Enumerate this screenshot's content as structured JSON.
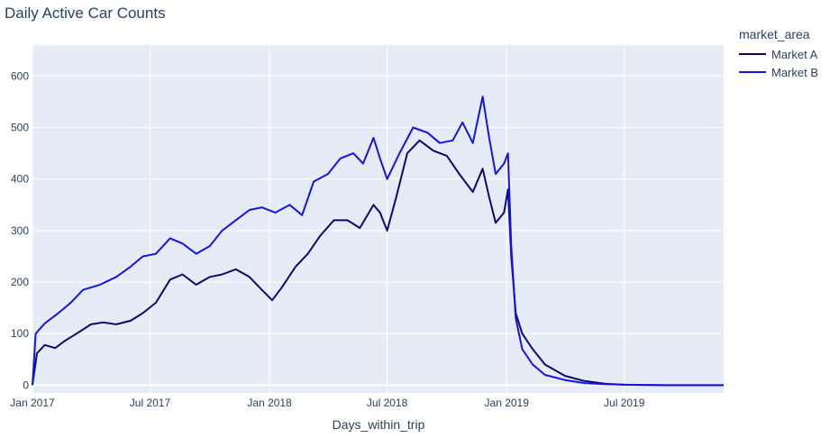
{
  "chart_data": {
    "type": "line",
    "title": "Daily Active Car Counts",
    "xlabel": "Days_within_trip",
    "ylabel": "",
    "x_range": [
      "2017-01-01",
      "2019-12-01"
    ],
    "ylim": [
      -15,
      660
    ],
    "x_ticks": [
      {
        "date": "2017-01-01",
        "label": "Jan 2017"
      },
      {
        "date": "2017-07-01",
        "label": "Jul 2017"
      },
      {
        "date": "2018-01-01",
        "label": "Jan 2018"
      },
      {
        "date": "2018-07-01",
        "label": "Jul 2018"
      },
      {
        "date": "2019-01-01",
        "label": "Jan 2019"
      },
      {
        "date": "2019-07-01",
        "label": "Jul 2019"
      }
    ],
    "y_ticks": [
      0,
      100,
      200,
      300,
      400,
      500,
      600
    ],
    "grid": true,
    "legend": {
      "title": "market_area",
      "position": "top-right"
    },
    "series": [
      {
        "name": "Market A",
        "color": "#0a0a6e",
        "points": [
          [
            "2017-01-01",
            0
          ],
          [
            "2017-01-08",
            62
          ],
          [
            "2017-01-20",
            78
          ],
          [
            "2017-02-05",
            72
          ],
          [
            "2017-02-20",
            86
          ],
          [
            "2017-03-10",
            100
          ],
          [
            "2017-04-01",
            118
          ],
          [
            "2017-04-20",
            122
          ],
          [
            "2017-05-10",
            118
          ],
          [
            "2017-06-01",
            125
          ],
          [
            "2017-06-20",
            140
          ],
          [
            "2017-07-10",
            160
          ],
          [
            "2017-08-01",
            205
          ],
          [
            "2017-08-20",
            215
          ],
          [
            "2017-09-10",
            195
          ],
          [
            "2017-10-01",
            210
          ],
          [
            "2017-10-20",
            215
          ],
          [
            "2017-11-10",
            225
          ],
          [
            "2017-12-01",
            210
          ],
          [
            "2017-12-20",
            185
          ],
          [
            "2018-01-05",
            165
          ],
          [
            "2018-01-20",
            190
          ],
          [
            "2018-02-10",
            230
          ],
          [
            "2018-03-01",
            255
          ],
          [
            "2018-03-20",
            290
          ],
          [
            "2018-04-10",
            320
          ],
          [
            "2018-05-01",
            320
          ],
          [
            "2018-05-20",
            305
          ],
          [
            "2018-06-10",
            350
          ],
          [
            "2018-06-20",
            335
          ],
          [
            "2018-07-01",
            300
          ],
          [
            "2018-07-15",
            365
          ],
          [
            "2018-08-01",
            450
          ],
          [
            "2018-08-20",
            475
          ],
          [
            "2018-09-10",
            455
          ],
          [
            "2018-10-01",
            445
          ],
          [
            "2018-10-20",
            410
          ],
          [
            "2018-11-10",
            375
          ],
          [
            "2018-11-25",
            420
          ],
          [
            "2018-12-05",
            365
          ],
          [
            "2018-12-15",
            315
          ],
          [
            "2018-12-28",
            335
          ],
          [
            "2019-01-03",
            380
          ],
          [
            "2019-01-08",
            250
          ],
          [
            "2019-01-15",
            140
          ],
          [
            "2019-01-25",
            100
          ],
          [
            "2019-02-10",
            70
          ],
          [
            "2019-03-01",
            40
          ],
          [
            "2019-04-01",
            18
          ],
          [
            "2019-05-01",
            8
          ],
          [
            "2019-06-01",
            3
          ],
          [
            "2019-07-01",
            1
          ],
          [
            "2019-09-01",
            0
          ],
          [
            "2019-12-01",
            0
          ]
        ]
      },
      {
        "name": "Market B",
        "color": "#1414e6",
        "points": [
          [
            "2017-01-01",
            0
          ],
          [
            "2017-01-06",
            100
          ],
          [
            "2017-01-20",
            120
          ],
          [
            "2017-02-10",
            140
          ],
          [
            "2017-03-01",
            160
          ],
          [
            "2017-03-20",
            185
          ],
          [
            "2017-04-15",
            195
          ],
          [
            "2017-05-10",
            210
          ],
          [
            "2017-06-01",
            230
          ],
          [
            "2017-06-20",
            250
          ],
          [
            "2017-07-10",
            255
          ],
          [
            "2017-08-01",
            285
          ],
          [
            "2017-08-20",
            275
          ],
          [
            "2017-09-10",
            255
          ],
          [
            "2017-10-01",
            270
          ],
          [
            "2017-10-20",
            300
          ],
          [
            "2017-11-10",
            320
          ],
          [
            "2017-12-01",
            340
          ],
          [
            "2017-12-20",
            345
          ],
          [
            "2018-01-10",
            335
          ],
          [
            "2018-02-01",
            350
          ],
          [
            "2018-02-20",
            330
          ],
          [
            "2018-03-10",
            395
          ],
          [
            "2018-04-01",
            410
          ],
          [
            "2018-04-20",
            440
          ],
          [
            "2018-05-10",
            450
          ],
          [
            "2018-05-25",
            430
          ],
          [
            "2018-06-10",
            480
          ],
          [
            "2018-06-20",
            440
          ],
          [
            "2018-07-01",
            400
          ],
          [
            "2018-07-20",
            450
          ],
          [
            "2018-08-10",
            500
          ],
          [
            "2018-09-01",
            490
          ],
          [
            "2018-09-20",
            470
          ],
          [
            "2018-10-10",
            475
          ],
          [
            "2018-10-25",
            510
          ],
          [
            "2018-11-10",
            470
          ],
          [
            "2018-11-25",
            560
          ],
          [
            "2018-12-05",
            480
          ],
          [
            "2018-12-15",
            410
          ],
          [
            "2018-12-28",
            430
          ],
          [
            "2019-01-03",
            450
          ],
          [
            "2019-01-08",
            270
          ],
          [
            "2019-01-15",
            130
          ],
          [
            "2019-01-25",
            70
          ],
          [
            "2019-02-10",
            40
          ],
          [
            "2019-03-01",
            20
          ],
          [
            "2019-04-01",
            10
          ],
          [
            "2019-05-01",
            4
          ],
          [
            "2019-06-01",
            2
          ],
          [
            "2019-07-01",
            1
          ],
          [
            "2019-09-01",
            0
          ],
          [
            "2019-12-01",
            0
          ]
        ]
      }
    ]
  }
}
